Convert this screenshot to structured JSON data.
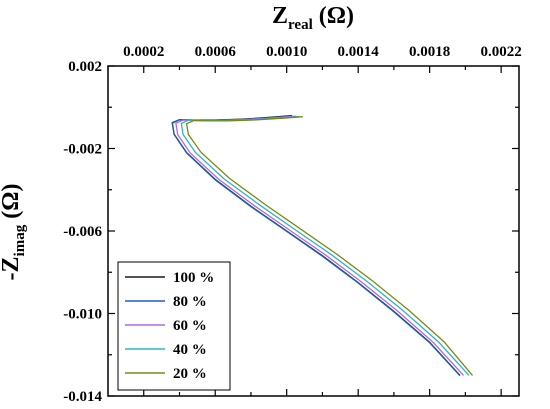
{
  "chart_data": {
    "type": "line",
    "title": "",
    "xlabel": {
      "main": "Z",
      "sub": "real",
      "rest": " (Ω)"
    },
    "ylabel": {
      "main": "-Z",
      "sub": "imag",
      "rest": " (Ω)"
    },
    "xlim": [
      0.0,
      0.0023
    ],
    "ylim": [
      -0.014,
      0.002
    ],
    "xticks": [
      0.0002,
      0.0006,
      0.001,
      0.0014,
      0.0018,
      0.0022
    ],
    "xtick_labels": [
      "0.0002",
      "0.0006",
      "0.0010",
      "0.0014",
      "0.0018",
      "0.0022"
    ],
    "yticks": [
      0.002,
      -0.002,
      -0.006,
      -0.01,
      -0.014
    ],
    "ytick_labels": [
      "0.002",
      "-0.002",
      "-0.006",
      "-0.010",
      "-0.014"
    ],
    "xaxis_position": "top",
    "grid": false,
    "legend_position": "bottom-left",
    "series": [
      {
        "name": "100 %",
        "color": "#1a1a1a",
        "x": [
          0.00103,
          0.00092,
          0.00075,
          0.0006,
          0.00048,
          0.0004,
          0.00036,
          0.00037,
          0.00044,
          0.0006,
          0.0008,
          0.001,
          0.0012,
          0.0014,
          0.0016,
          0.0018,
          0.00197
        ],
        "y": [
          -0.0004,
          -0.00048,
          -0.00058,
          -0.00062,
          -0.00062,
          -0.0006,
          -0.00075,
          -0.0013,
          -0.0022,
          -0.0035,
          -0.0048,
          -0.006,
          -0.0072,
          -0.0085,
          -0.0099,
          -0.0114,
          -0.013
        ]
      },
      {
        "name": "80 %",
        "color": "#1f5fbf",
        "x": [
          0.00103,
          0.00092,
          0.00075,
          0.0006,
          0.00048,
          0.0004,
          0.00036,
          0.00037,
          0.00044,
          0.0006,
          0.0008,
          0.001,
          0.0012,
          0.0014,
          0.0016,
          0.0018,
          0.00197
        ],
        "y": [
          -0.00042,
          -0.0005,
          -0.00059,
          -0.00063,
          -0.00063,
          -0.00061,
          -0.00077,
          -0.00132,
          -0.00222,
          -0.00352,
          -0.00482,
          -0.00602,
          -0.00722,
          -0.00852,
          -0.00992,
          -0.01142,
          -0.01302
        ]
      },
      {
        "name": "60 %",
        "color": "#b36ad9",
        "x": [
          0.00105,
          0.00094,
          0.00077,
          0.00062,
          0.0005,
          0.00042,
          0.00038,
          0.00039,
          0.00046,
          0.00062,
          0.00082,
          0.00102,
          0.00122,
          0.00142,
          0.00162,
          0.00182,
          0.00199
        ],
        "y": [
          -0.00043,
          -0.00051,
          -0.0006,
          -0.00064,
          -0.00064,
          -0.00062,
          -0.00078,
          -0.00132,
          -0.00222,
          -0.0035,
          -0.00478,
          -0.00598,
          -0.00718,
          -0.00848,
          -0.00988,
          -0.0114,
          -0.013
        ]
      },
      {
        "name": "40 %",
        "color": "#2bb5c8",
        "x": [
          0.00107,
          0.00096,
          0.0008,
          0.00065,
          0.00053,
          0.00045,
          0.00041,
          0.00042,
          0.00049,
          0.00065,
          0.00085,
          0.00105,
          0.00125,
          0.00145,
          0.00165,
          0.00185,
          0.00202
        ],
        "y": [
          -0.00045,
          -0.00052,
          -0.00061,
          -0.00065,
          -0.00065,
          -0.00063,
          -0.00079,
          -0.00132,
          -0.0022,
          -0.00348,
          -0.00475,
          -0.00595,
          -0.00715,
          -0.00845,
          -0.00985,
          -0.01138,
          -0.013
        ]
      },
      {
        "name": "20 %",
        "color": "#7a8a10",
        "x": [
          0.00109,
          0.00098,
          0.00082,
          0.00067,
          0.00056,
          0.00048,
          0.00044,
          0.00045,
          0.00052,
          0.00068,
          0.00088,
          0.00108,
          0.00128,
          0.00148,
          0.00168,
          0.00188,
          0.00204
        ],
        "y": [
          -0.00046,
          -0.00053,
          -0.00062,
          -0.00066,
          -0.00066,
          -0.00064,
          -0.0008,
          -0.00132,
          -0.00218,
          -0.00345,
          -0.00472,
          -0.00592,
          -0.00712,
          -0.00842,
          -0.00982,
          -0.01136,
          -0.013
        ]
      }
    ]
  }
}
